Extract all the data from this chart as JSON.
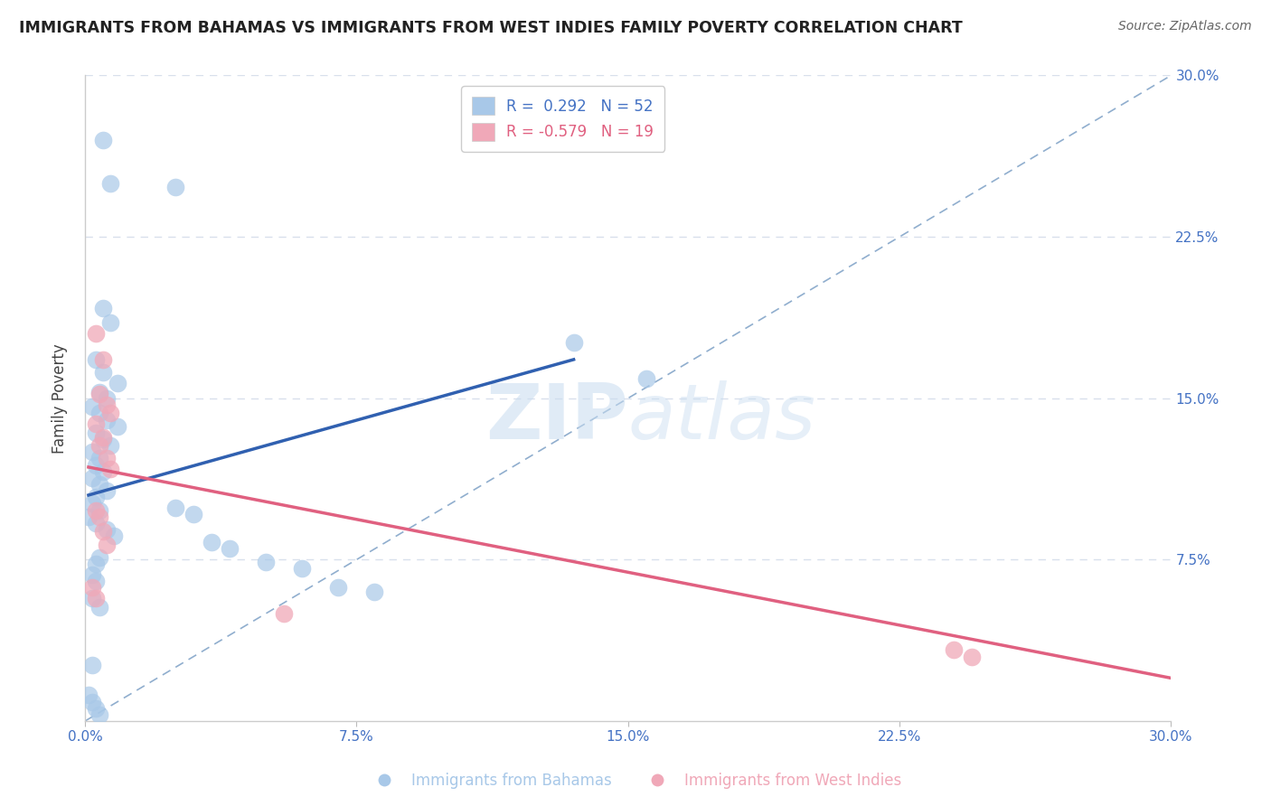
{
  "title": "IMMIGRANTS FROM BAHAMAS VS IMMIGRANTS FROM WEST INDIES FAMILY POVERTY CORRELATION CHART",
  "source_text": "Source: ZipAtlas.com",
  "ylabel": "Family Poverty",
  "watermark_zip": "ZIP",
  "watermark_atlas": "atlas",
  "x_min": 0.0,
  "x_max": 0.3,
  "y_min": 0.0,
  "y_max": 0.3,
  "x_ticks": [
    0.0,
    0.075,
    0.15,
    0.225,
    0.3
  ],
  "x_tick_labels": [
    "0.0%",
    "7.5%",
    "15.0%",
    "22.5%",
    "30.0%"
  ],
  "y_ticks": [
    0.075,
    0.15,
    0.225,
    0.3
  ],
  "y_tick_labels": [
    "7.5%",
    "15.0%",
    "22.5%",
    "30.0%"
  ],
  "legend_r1": "R =  0.292   N = 52",
  "legend_r2": "R = -0.579   N = 19",
  "bahamas_label": "Immigrants from Bahamas",
  "west_indies_label": "Immigrants from West Indies",
  "bahamas_color": "#a8c8e8",
  "west_indies_color": "#f0a8b8",
  "blue_line_color": "#3060b0",
  "pink_line_color": "#e06080",
  "dashed_line_color": "#90aece",
  "grid_color": "#d8e0ec",
  "background_color": "#ffffff",
  "title_color": "#222222",
  "source_color": "#666666",
  "tick_label_color": "#4472c4",
  "ylabel_color": "#444444",
  "legend_blue_color": "#4472c4",
  "legend_pink_color": "#e06080",
  "bahamas_scatter": [
    [
      0.005,
      0.27
    ],
    [
      0.007,
      0.25
    ],
    [
      0.025,
      0.248
    ],
    [
      0.005,
      0.192
    ],
    [
      0.007,
      0.185
    ],
    [
      0.003,
      0.168
    ],
    [
      0.005,
      0.162
    ],
    [
      0.009,
      0.157
    ],
    [
      0.004,
      0.153
    ],
    [
      0.006,
      0.15
    ],
    [
      0.002,
      0.146
    ],
    [
      0.004,
      0.143
    ],
    [
      0.006,
      0.14
    ],
    [
      0.009,
      0.137
    ],
    [
      0.003,
      0.134
    ],
    [
      0.005,
      0.131
    ],
    [
      0.007,
      0.128
    ],
    [
      0.002,
      0.125
    ],
    [
      0.004,
      0.122
    ],
    [
      0.003,
      0.119
    ],
    [
      0.005,
      0.116
    ],
    [
      0.002,
      0.113
    ],
    [
      0.004,
      0.11
    ],
    [
      0.006,
      0.107
    ],
    [
      0.003,
      0.104
    ],
    [
      0.002,
      0.101
    ],
    [
      0.004,
      0.098
    ],
    [
      0.001,
      0.095
    ],
    [
      0.003,
      0.092
    ],
    [
      0.006,
      0.089
    ],
    [
      0.008,
      0.086
    ],
    [
      0.025,
      0.099
    ],
    [
      0.03,
      0.096
    ],
    [
      0.035,
      0.083
    ],
    [
      0.04,
      0.08
    ],
    [
      0.004,
      0.076
    ],
    [
      0.003,
      0.073
    ],
    [
      0.05,
      0.074
    ],
    [
      0.06,
      0.071
    ],
    [
      0.002,
      0.068
    ],
    [
      0.003,
      0.065
    ],
    [
      0.07,
      0.062
    ],
    [
      0.08,
      0.06
    ],
    [
      0.002,
      0.057
    ],
    [
      0.004,
      0.053
    ],
    [
      0.002,
      0.026
    ],
    [
      0.135,
      0.176
    ],
    [
      0.155,
      0.159
    ],
    [
      0.001,
      0.012
    ],
    [
      0.002,
      0.009
    ],
    [
      0.003,
      0.006
    ],
    [
      0.004,
      0.003
    ]
  ],
  "west_indies_scatter": [
    [
      0.003,
      0.18
    ],
    [
      0.005,
      0.168
    ],
    [
      0.004,
      0.152
    ],
    [
      0.006,
      0.147
    ],
    [
      0.007,
      0.143
    ],
    [
      0.003,
      0.138
    ],
    [
      0.005,
      0.132
    ],
    [
      0.004,
      0.128
    ],
    [
      0.006,
      0.122
    ],
    [
      0.007,
      0.117
    ],
    [
      0.003,
      0.098
    ],
    [
      0.004,
      0.095
    ],
    [
      0.005,
      0.088
    ],
    [
      0.006,
      0.082
    ],
    [
      0.002,
      0.062
    ],
    [
      0.003,
      0.057
    ],
    [
      0.055,
      0.05
    ],
    [
      0.24,
      0.033
    ],
    [
      0.245,
      0.03
    ]
  ],
  "blue_line_x": [
    0.001,
    0.135
  ],
  "blue_line_y": [
    0.105,
    0.168
  ],
  "pink_line_x": [
    0.001,
    0.3
  ],
  "pink_line_y": [
    0.118,
    0.02
  ],
  "dashed_line_x": [
    0.0,
    0.3
  ],
  "dashed_line_y": [
    0.0,
    0.3
  ]
}
